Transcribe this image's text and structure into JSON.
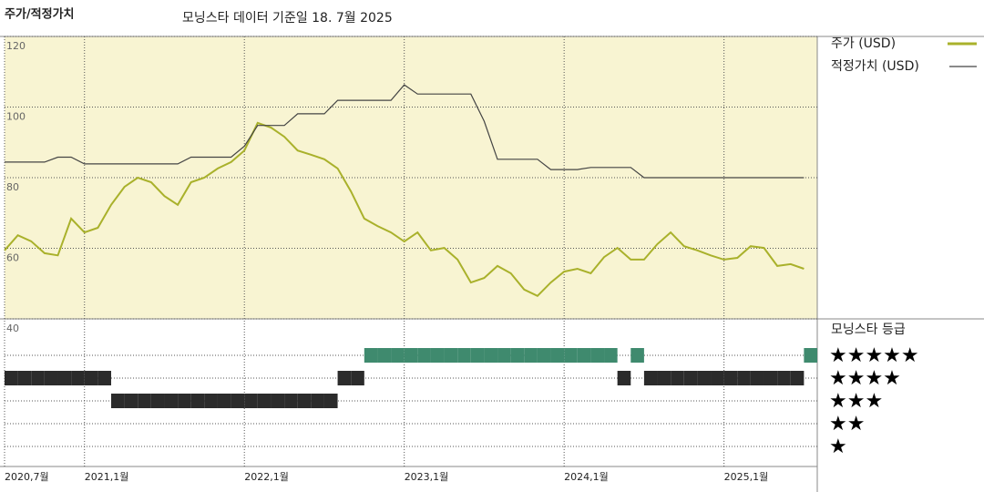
{
  "title": "주가/적정가치",
  "subtitle": "모닝스타 데이터 기준일 18. 7월 2025",
  "chart_data": [
    {
      "type": "line",
      "x": [
        "2020-07",
        "2020-08",
        "2020-09",
        "2020-10",
        "2020-11",
        "2020-12",
        "2021-01",
        "2021-02",
        "2021-03",
        "2021-04",
        "2021-05",
        "2021-06",
        "2021-07",
        "2021-08",
        "2021-09",
        "2021-10",
        "2021-11",
        "2021-12",
        "2022-01",
        "2022-02",
        "2022-03",
        "2022-04",
        "2022-05",
        "2022-06",
        "2022-07",
        "2022-08",
        "2022-09",
        "2022-10",
        "2022-11",
        "2022-12",
        "2023-01",
        "2023-02",
        "2023-03",
        "2023-04",
        "2023-05",
        "2023-06",
        "2023-07",
        "2023-08",
        "2023-09",
        "2023-10",
        "2023-11",
        "2023-12",
        "2024-01",
        "2024-02",
        "2024-03",
        "2024-04",
        "2024-05",
        "2024-06",
        "2024-07",
        "2024-08",
        "2024-09",
        "2024-10",
        "2024-11",
        "2024-12",
        "2025-01",
        "2025-02",
        "2025-03",
        "2025-04",
        "2025-05",
        "2025-06",
        "2025-07"
      ],
      "series": [
        {
          "name": "주가 (USD)",
          "color": "#a9b12b",
          "values": [
            59.4,
            63.7,
            62,
            58.6,
            58,
            68.4,
            64.5,
            65.8,
            72.3,
            77.4,
            80,
            78.7,
            74.8,
            72.3,
            78.7,
            80,
            82.6,
            84.4,
            87.7,
            95.5,
            94.2,
            91.6,
            87.7,
            86.5,
            85.2,
            82.6,
            76.1,
            68.4,
            66.3,
            64.5,
            61.9,
            64.5,
            59.4,
            60.1,
            56.8,
            50.3,
            51.6,
            55,
            52.9,
            48.3,
            46.5,
            50.3,
            53.4,
            54.2,
            52.9,
            57.5,
            60.1,
            56.8,
            56.8,
            61.2,
            64.5,
            60.6,
            59.4,
            58,
            56.8,
            57.3,
            60.6,
            60.1,
            55,
            55.5,
            54.2
          ]
        },
        {
          "name": "적정가치 (USD)",
          "color": "#444444",
          "values": [
            84.4,
            84.4,
            84.4,
            84.4,
            85.8,
            85.8,
            83.9,
            83.9,
            83.9,
            83.9,
            83.9,
            83.9,
            83.9,
            83.9,
            85.8,
            85.8,
            85.8,
            85.8,
            88.9,
            94.8,
            94.8,
            94.8,
            98.1,
            98.1,
            98.1,
            101.9,
            101.9,
            101.9,
            101.9,
            101.9,
            106.3,
            103.7,
            103.7,
            103.7,
            103.7,
            103.7,
            96,
            85.2,
            85.2,
            85.2,
            85.2,
            82.3,
            82.3,
            82.3,
            82.9,
            82.9,
            82.9,
            82.9,
            80,
            80,
            80,
            80,
            80,
            80,
            80,
            80,
            80,
            80,
            80,
            80,
            80
          ]
        }
      ],
      "xlim": [
        "2020-07",
        "2025-08"
      ],
      "xticks": [
        {
          "value": "2020-07",
          "label": "2020,7월"
        },
        {
          "value": "2021-01",
          "label": "2021,1월"
        },
        {
          "value": "2022-01",
          "label": "2022,1월"
        },
        {
          "value": "2023-01",
          "label": "2023,1월"
        },
        {
          "value": "2024-01",
          "label": "2024,1월"
        },
        {
          "value": "2025-01",
          "label": "2025,1월"
        }
      ],
      "ylim": [
        40,
        120
      ],
      "yticks": [
        40,
        60,
        80,
        100,
        120
      ],
      "grid": true,
      "background": "#f8f4d2"
    },
    {
      "type": "rating",
      "title": "모닝스타 등급",
      "values": [
        4,
        4,
        4,
        4,
        4,
        4,
        4,
        4,
        3,
        3,
        3,
        3,
        3,
        3,
        3,
        3,
        3,
        3,
        3,
        3,
        3,
        3,
        3,
        3,
        3,
        4,
        4,
        5,
        5,
        5,
        5,
        5,
        5,
        5,
        5,
        5,
        5,
        5,
        5,
        5,
        5,
        5,
        5,
        5,
        5,
        5,
        4,
        5,
        4,
        4,
        4,
        4,
        4,
        4,
        4,
        4,
        4,
        4,
        4,
        4,
        5
      ],
      "color": "#2b2b2b",
      "top_color": "#3f8a6e",
      "ylim": [
        0,
        6
      ],
      "yticks": [
        {
          "value": 5,
          "label": "★★★★★"
        },
        {
          "value": 4,
          "label": "★★★★"
        },
        {
          "value": 3,
          "label": "★★★"
        },
        {
          "value": 2,
          "label": "★★"
        },
        {
          "value": 1,
          "label": "★"
        }
      ]
    }
  ]
}
